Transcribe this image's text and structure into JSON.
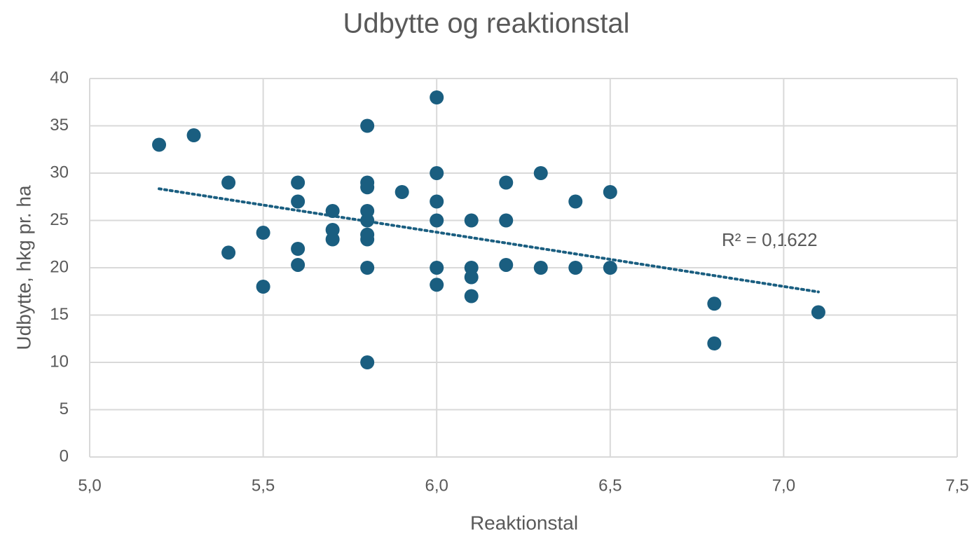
{
  "chart_data": {
    "type": "scatter",
    "title": "Udbytte og reaktionstal",
    "x_label": "Reaktionstal",
    "y_label": "Udbytte, hkg pr. ha",
    "annotation": "R² = 0,1622",
    "trendline": "linear",
    "color": "#1a5e80",
    "grid": true,
    "x": [
      5.2,
      5.3,
      5.4,
      5.4,
      5.5,
      5.5,
      5.6,
      5.6,
      5.6,
      5.6,
      5.7,
      5.7,
      5.7,
      5.8,
      5.8,
      5.8,
      5.8,
      5.8,
      5.8,
      5.8,
      5.8,
      5.8,
      5.9,
      6.0,
      6.0,
      6.0,
      6.0,
      6.0,
      6.0,
      6.1,
      6.1,
      6.1,
      6.1,
      6.2,
      6.2,
      6.2,
      6.3,
      6.3,
      6.4,
      6.4,
      6.5,
      6.5,
      6.8,
      6.8,
      7.1
    ],
    "values": [
      33,
      34,
      29,
      21.6,
      23.7,
      18,
      29,
      27,
      22,
      20.3,
      26,
      24,
      23,
      35,
      29,
      28.5,
      26,
      25,
      23.5,
      23,
      20,
      10,
      28,
      38,
      30,
      27,
      25,
      20,
      18.2,
      25,
      20,
      19,
      17,
      29,
      25,
      20.3,
      30,
      20,
      27,
      20,
      28,
      20,
      16.2,
      12,
      15.3
    ],
    "xlim": [
      5,
      7.5
    ],
    "xticks": [
      {
        "value": 5,
        "label": "5,0"
      },
      {
        "value": 5.5,
        "label": "5,5"
      },
      {
        "value": 6,
        "label": "6,0"
      },
      {
        "value": 6.5,
        "label": "6,5"
      },
      {
        "value": 7,
        "label": "7,0"
      },
      {
        "value": 7.5,
        "label": "7,5"
      }
    ],
    "ylim": [
      0,
      40
    ],
    "yticks": [
      0,
      5,
      10,
      15,
      20,
      25,
      30,
      35,
      40
    ]
  }
}
